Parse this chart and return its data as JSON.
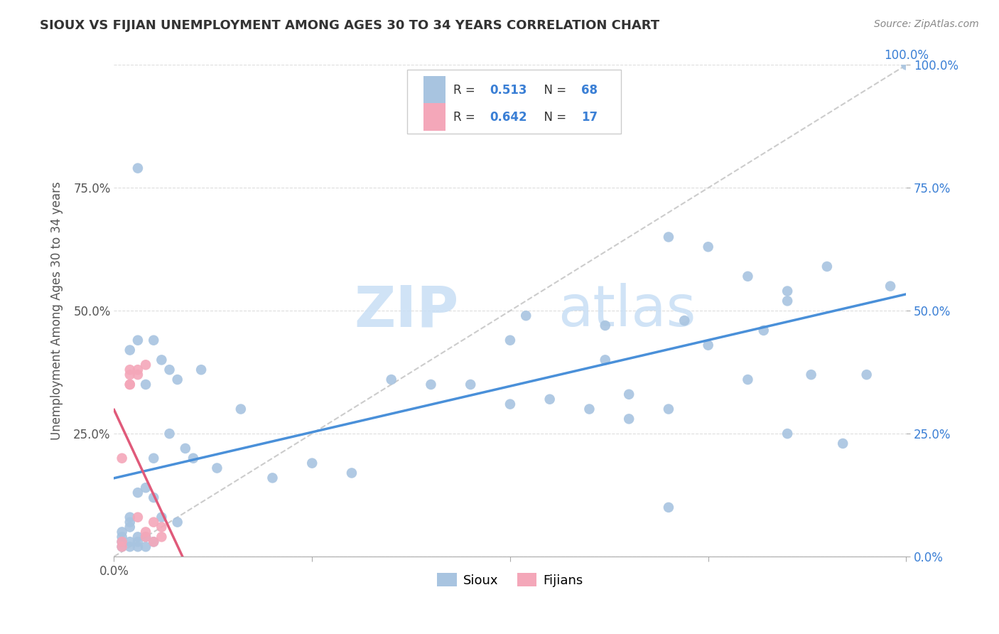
{
  "title": "SIOUX VS FIJIAN UNEMPLOYMENT AMONG AGES 30 TO 34 YEARS CORRELATION CHART",
  "source": "Source: ZipAtlas.com",
  "ylabel": "Unemployment Among Ages 30 to 34 years",
  "sioux_R": "0.513",
  "sioux_N": "68",
  "fijian_R": "0.642",
  "fijian_N": "17",
  "sioux_color": "#a8c4e0",
  "fijian_color": "#f4a7b9",
  "sioux_line_color": "#4a90d9",
  "fijian_line_color": "#e05a7a",
  "diagonal_color": "#cccccc",
  "background_color": "#ffffff",
  "watermark_zip": "ZIP",
  "watermark_atlas": "atlas",
  "tick_color_gray": "#555555",
  "tick_color_blue": "#3a7fd5",
  "sioux_x": [
    0.01,
    0.01,
    0.01,
    0.01,
    0.02,
    0.02,
    0.02,
    0.02,
    0.02,
    0.02,
    0.03,
    0.03,
    0.03,
    0.03,
    0.03,
    0.03,
    0.04,
    0.04,
    0.04,
    0.04,
    0.05,
    0.05,
    0.05,
    0.05,
    0.06,
    0.06,
    0.07,
    0.07,
    0.08,
    0.08,
    0.09,
    0.1,
    0.11,
    0.13,
    0.16,
    0.2,
    0.25,
    0.3,
    0.35,
    0.4,
    0.45,
    0.5,
    0.5,
    0.55,
    0.6,
    0.62,
    0.65,
    0.65,
    0.7,
    0.7,
    0.72,
    0.75,
    0.8,
    0.82,
    0.85,
    0.85,
    0.88,
    0.9,
    0.92,
    0.95,
    0.98,
    0.52,
    0.62,
    0.7,
    0.75,
    0.8,
    0.85,
    1.0
  ],
  "sioux_y": [
    0.02,
    0.03,
    0.04,
    0.05,
    0.02,
    0.03,
    0.06,
    0.07,
    0.08,
    0.42,
    0.02,
    0.03,
    0.04,
    0.13,
    0.44,
    0.79,
    0.02,
    0.04,
    0.14,
    0.35,
    0.03,
    0.12,
    0.2,
    0.44,
    0.08,
    0.4,
    0.25,
    0.38,
    0.07,
    0.36,
    0.22,
    0.2,
    0.38,
    0.18,
    0.3,
    0.16,
    0.19,
    0.17,
    0.36,
    0.35,
    0.35,
    0.31,
    0.44,
    0.32,
    0.3,
    0.47,
    0.28,
    0.33,
    0.1,
    0.3,
    0.48,
    0.43,
    0.36,
    0.46,
    0.25,
    0.54,
    0.37,
    0.59,
    0.23,
    0.37,
    0.55,
    0.49,
    0.4,
    0.65,
    0.63,
    0.57,
    0.52,
    1.0
  ],
  "fijian_x": [
    0.01,
    0.01,
    0.01,
    0.02,
    0.02,
    0.02,
    0.02,
    0.03,
    0.03,
    0.03,
    0.04,
    0.04,
    0.04,
    0.05,
    0.05,
    0.06,
    0.06
  ],
  "fijian_y": [
    0.2,
    0.02,
    0.03,
    0.35,
    0.35,
    0.37,
    0.38,
    0.37,
    0.08,
    0.38,
    0.04,
    0.05,
    0.39,
    0.03,
    0.07,
    0.04,
    0.06
  ],
  "xlim": [
    0,
    1.0
  ],
  "ylim": [
    0,
    1.0
  ],
  "xticks": [
    0.0,
    0.25,
    0.5,
    0.75,
    1.0
  ],
  "yticks": [
    0.0,
    0.25,
    0.5,
    0.75,
    1.0
  ],
  "xticklabels_gray": [
    "0.0%",
    "",
    "",
    "",
    ""
  ],
  "xticklabels_blue_right": [
    "",
    "",
    "",
    "",
    "100.0%"
  ],
  "yticklabels_gray": [
    "",
    "25.0%",
    "50.0%",
    "75.0%",
    ""
  ],
  "yticklabels_blue": [
    "0.0%",
    "25.0%",
    "50.0%",
    "75.0%",
    "100.0%"
  ]
}
